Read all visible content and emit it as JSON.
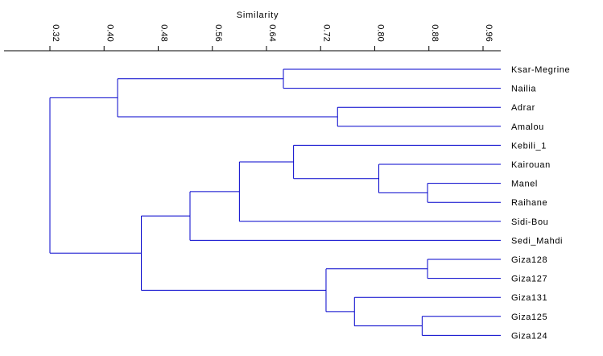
{
  "chart_data": {
    "type": "dendrogram",
    "title": "Similarity",
    "axis": {
      "min": 0.28,
      "max": 1.0,
      "ticks": [
        "0.32",
        "0.40",
        "0.48",
        "0.56",
        "0.64",
        "0.72",
        "0.80",
        "0.88",
        "0.96"
      ],
      "tick_values": [
        0.32,
        0.4,
        0.48,
        0.56,
        0.64,
        0.72,
        0.8,
        0.88,
        0.96
      ],
      "tick_label_orientation": "rotated",
      "position": "top"
    },
    "leaves": [
      "Ksar-Megrine",
      "Nailia",
      "Adrar",
      "Amalou",
      "Kebili_1",
      "Kairouan",
      "Manel",
      "Raihane",
      "Sidi-Bou",
      "Sedi_Mahdi",
      "Giza128",
      "Giza127",
      "Giza131",
      "Giza125",
      "Giza124"
    ],
    "merges": [
      {
        "children": [
          "Ksar-Megrine",
          "Nailia"
        ],
        "similarity": 0.665
      },
      {
        "children": [
          "Adrar",
          "Amalou"
        ],
        "similarity": 0.745
      },
      {
        "children": [
          "c1",
          "c2"
        ],
        "similarity": 0.42
      },
      {
        "children": [
          "Manel",
          "Raihane"
        ],
        "similarity": 0.878
      },
      {
        "children": [
          "Kairouan",
          "c4"
        ],
        "similarity": 0.806
      },
      {
        "children": [
          "Kebili_1",
          "c5"
        ],
        "similarity": 0.68
      },
      {
        "children": [
          "c6",
          "Sidi-Bou"
        ],
        "similarity": 0.6
      },
      {
        "children": [
          "c7",
          "Sedi_Mahdi"
        ],
        "similarity": 0.527
      },
      {
        "children": [
          "Giza128",
          "Giza127"
        ],
        "similarity": 0.878
      },
      {
        "children": [
          "Giza125",
          "Giza124"
        ],
        "similarity": 0.87
      },
      {
        "children": [
          "Giza131",
          "c10"
        ],
        "similarity": 0.77
      },
      {
        "children": [
          "c9",
          "c11"
        ],
        "similarity": 0.728
      },
      {
        "children": [
          "c8",
          "c12"
        ],
        "similarity": 0.455
      },
      {
        "children": [
          "c3",
          "c13"
        ],
        "similarity": 0.32
      }
    ],
    "line_color": "#0000cc",
    "axis_color": "#000000"
  }
}
